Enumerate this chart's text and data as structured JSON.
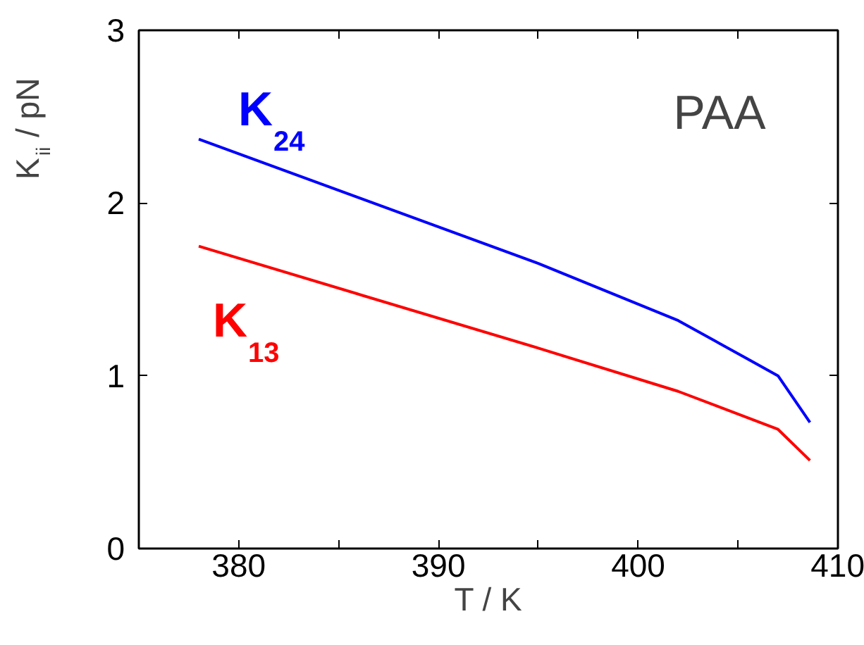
{
  "chart_data": {
    "type": "line",
    "xlabel": "T / K",
    "ylabel": "K$_{ii}$ / pN",
    "annotations": [
      "PAA"
    ],
    "xlim": [
      375,
      410
    ],
    "ylim": [
      0,
      3
    ],
    "xticks": [
      380,
      {
        "value": 385,
        "label": null
      },
      390,
      {
        "value": 395,
        "label": null
      },
      400,
      {
        "value": 405,
        "label": null
      },
      410
    ],
    "yticks": [
      0,
      1,
      2,
      3
    ],
    "grid": false,
    "marker": "none",
    "line_style": "solid",
    "x": [
      378,
      395,
      402,
      407,
      408.6
    ],
    "series": [
      {
        "name": "K$_{24}$",
        "color": "#0000ff",
        "values": [
          2.37,
          1.65,
          1.32,
          1.0,
          0.73
        ]
      },
      {
        "name": "K$_{13}$",
        "color": "#ff0000",
        "values": [
          1.75,
          1.16,
          0.91,
          0.69,
          0.51
        ]
      }
    ]
  }
}
